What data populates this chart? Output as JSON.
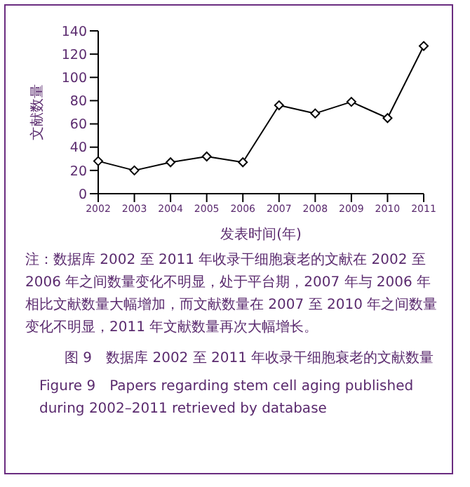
{
  "chart_data": {
    "type": "line",
    "title": "图 9　数据库 2002 至 2011 年收录干细胞衰老的文献数量",
    "subtitle": "Figure 9　Papers regarding stem cell aging published during 2002–2011 retrieved by database",
    "xlabel": "发表时间(年)",
    "ylabel": "文献数量",
    "annotations": [
      "注：数据库 2002 至 2011 年收录干细胞衰老的文献在 2002 至 2006 年之间数量变化不明显，处于平台期，2007 年与 2006 年相比文献数量大幅增加，而文献数量在 2007 至 2010 年之间数量变化不明显，2011 年文献数量再次大幅增长。"
    ],
    "categories": [
      "2002",
      "2003",
      "2004",
      "2005",
      "2006",
      "2007",
      "2008",
      "2009",
      "2010",
      "2011"
    ],
    "series": [
      {
        "color": "#000000",
        "values": [
          28,
          20,
          27,
          32,
          27,
          76,
          69,
          79,
          65,
          127
        ]
      }
    ],
    "ylim": [
      0,
      140
    ],
    "yticks": [
      0,
      20,
      40,
      60,
      80,
      100,
      120,
      140
    ],
    "grid": false,
    "legend": false,
    "marker": "diamond",
    "line_style": "solid"
  }
}
